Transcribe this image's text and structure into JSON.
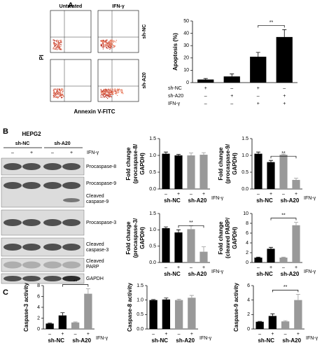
{
  "panel_labels": [
    "A",
    "B",
    "C"
  ],
  "flow": {
    "columns": [
      "Untreated",
      "IFN-γ"
    ],
    "rows": [
      "sh-NC",
      "sh-A20"
    ],
    "y_label": "PI",
    "x_label": "Annexin V-FITC"
  },
  "blot": {
    "cell_line": "HEPG2",
    "groups": [
      "sh-NC",
      "sh-A20"
    ],
    "treatment": "IFN-γ",
    "lanes": [
      "–",
      "+",
      "–",
      "+"
    ],
    "bands": [
      [
        "Procaspase-8"
      ],
      [
        "Procaspase-9"
      ],
      [
        "Cleaved",
        "caspase-9"
      ],
      [
        "Procaspase-3"
      ],
      [
        "Cleaved",
        "caspase-3"
      ],
      [
        "Cleaved",
        "PARP"
      ],
      [
        "GAPDH"
      ]
    ]
  },
  "chart_data": [
    {
      "type": "bar",
      "y_label": [
        "Apoptosis (%)"
      ],
      "values": [
        2.5,
        5,
        21,
        37
      ],
      "errors": [
        0.8,
        2,
        3.5,
        6
      ],
      "colors": [
        "#000000",
        "#000000",
        "#000000",
        "#000000"
      ],
      "ylim": [
        0,
        50
      ],
      "yticks": [
        0,
        10,
        20,
        30,
        40,
        50
      ],
      "annotation": "**",
      "table": [
        {
          "label": "sh-NC",
          "cells": [
            "+",
            "–",
            "+",
            "–"
          ]
        },
        {
          "label": "sh-A20",
          "cells": [
            "–",
            "+",
            "–",
            "+"
          ]
        },
        {
          "label": "IFN-γ",
          "cells": [
            "–",
            "–",
            "+",
            "+"
          ]
        }
      ]
    },
    {
      "type": "bar",
      "y_label": [
        "Fold change",
        "(procaspase-8/",
        "GAPDH)"
      ],
      "categories": [
        "–",
        "+",
        "–",
        "+"
      ],
      "groups": [
        "sh-NC",
        "sh-A20"
      ],
      "treatment": "IFN-γ",
      "values": [
        1.05,
        1.0,
        1.0,
        1.02
      ],
      "errors": [
        0.05,
        0.03,
        0.07,
        0.06
      ],
      "colors": [
        "#000000",
        "#000000",
        "#999999",
        "#999999"
      ],
      "ylim": [
        0,
        1.5
      ],
      "yticks": [
        {
          "value": 0,
          "label": "0.0"
        },
        0.5,
        {
          "value": 1,
          "label": "1.0"
        },
        1.5
      ]
    },
    {
      "type": "bar",
      "y_label": [
        "Fold change",
        "(procaspase-9/",
        "GAPDH)"
      ],
      "categories": [
        "–",
        "+",
        "–",
        "+"
      ],
      "groups": [
        "sh-NC",
        "sh-A20"
      ],
      "treatment": "IFN-γ",
      "values": [
        1.05,
        0.8,
        1.02,
        0.27
      ],
      "errors": [
        0.05,
        0.05,
        0.02,
        0.05
      ],
      "colors": [
        "#000000",
        "#000000",
        "#999999",
        "#999999"
      ],
      "ylim": [
        0,
        1.5
      ],
      "yticks": [
        {
          "value": 0,
          "label": "0.0"
        },
        0.5,
        {
          "value": 1,
          "label": "1.0"
        },
        1.5
      ],
      "annotation": "**"
    },
    {
      "type": "bar",
      "y_label": [
        "Fold change",
        "(procaspase-3/",
        "GAPDH)"
      ],
      "categories": [
        "–",
        "+",
        "–",
        "+"
      ],
      "groups": [
        "sh-NC",
        "sh-A20"
      ],
      "treatment": "IFN-γ",
      "values": [
        1.05,
        0.92,
        1.02,
        0.33
      ],
      "errors": [
        0.04,
        0.08,
        0.1,
        0.15
      ],
      "colors": [
        "#000000",
        "#000000",
        "#999999",
        "#999999"
      ],
      "ylim": [
        0,
        1.5
      ],
      "yticks": [
        {
          "value": 0,
          "label": "0.0"
        },
        0.5,
        {
          "value": 1,
          "label": "1.0"
        },
        1.5
      ],
      "annotation": "**"
    },
    {
      "type": "bar",
      "y_label": [
        "Fold change",
        "(cleaved PARP/",
        "GAPDH)"
      ],
      "categories": [
        "–",
        "+",
        "–",
        "+"
      ],
      "groups": [
        "sh-NC",
        "sh-A20"
      ],
      "treatment": "IFN-γ",
      "values": [
        1,
        2.8,
        1,
        7.6
      ],
      "errors": [
        0.1,
        0.3,
        0.1,
        0.6
      ],
      "colors": [
        "#000000",
        "#000000",
        "#999999",
        "#999999"
      ],
      "ylim": [
        0,
        10
      ],
      "yticks": [
        0,
        2,
        4,
        6,
        8,
        10
      ],
      "annotation": "**"
    },
    {
      "type": "bar",
      "y_label": [
        "Caspase-3 activity"
      ],
      "categories": [
        "–",
        "+",
        "–",
        "+"
      ],
      "groups": [
        "sh-NC",
        "sh-A20"
      ],
      "treatment": "IFN-γ",
      "values": [
        1.0,
        2.5,
        1.2,
        6.5
      ],
      "errors": [
        0.1,
        0.5,
        0.1,
        0.9
      ],
      "colors": [
        "#000000",
        "#000000",
        "#999999",
        "#999999"
      ],
      "ylim": [
        0,
        8
      ],
      "yticks": [
        0,
        2,
        4,
        6,
        8
      ],
      "annotation": "**"
    },
    {
      "type": "bar",
      "y_label": [
        "Caspase-8 activity"
      ],
      "categories": [
        "–",
        "+",
        "–",
        "+"
      ],
      "groups": [
        "sh-NC",
        "sh-A20"
      ],
      "treatment": "IFN-γ",
      "values": [
        1.0,
        1.02,
        1.0,
        1.08
      ],
      "errors": [
        0.02,
        0.05,
        0.03,
        0.08
      ],
      "colors": [
        "#000000",
        "#000000",
        "#999999",
        "#999999"
      ],
      "ylim": [
        0,
        1.5
      ],
      "yticks": [
        {
          "value": 0,
          "label": "0.0"
        },
        0.5,
        {
          "value": 1,
          "label": "1.0"
        },
        1.5
      ]
    },
    {
      "type": "bar",
      "y_label": [
        "Caspase-9 activity"
      ],
      "categories": [
        "–",
        "+",
        "–",
        "+"
      ],
      "groups": [
        "sh-NC",
        "sh-A20"
      ],
      "treatment": "IFN-γ",
      "values": [
        1.0,
        1.8,
        1.05,
        4.0
      ],
      "errors": [
        0.05,
        0.3,
        0.1,
        0.8
      ],
      "colors": [
        "#000000",
        "#000000",
        "#999999",
        "#999999"
      ],
      "ylim": [
        0,
        6
      ],
      "yticks": [
        0,
        2,
        4,
        6
      ],
      "annotation": "**"
    }
  ]
}
